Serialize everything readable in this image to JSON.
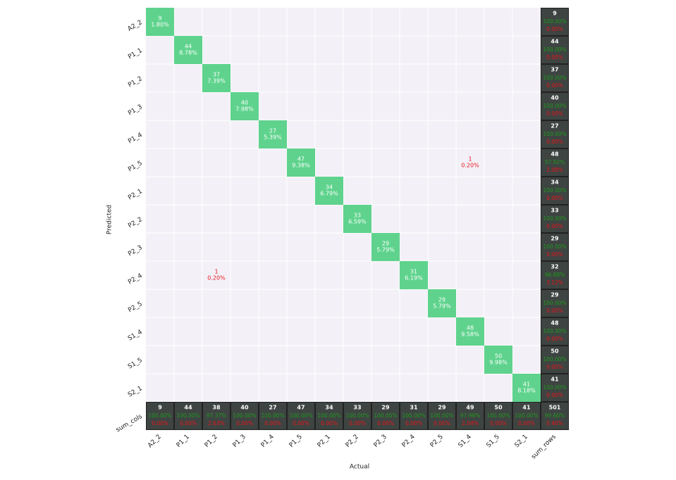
{
  "chart_data": {
    "type": "confusion_matrix",
    "x_label": "Actual",
    "y_label": "Predicted",
    "categories": [
      "A2_2",
      "P1_1",
      "P1_2",
      "P1_3",
      "P1_4",
      "P1_5",
      "P2_1",
      "P2_2",
      "P2_3",
      "P2_4",
      "P2_5",
      "S1_4",
      "S1_5",
      "S2_1"
    ],
    "sum_cols_label": "sum_cols",
    "sum_rows_label": "sum_rows",
    "matrix": [
      [
        9,
        null,
        null,
        null,
        null,
        null,
        null,
        null,
        null,
        null,
        null,
        null,
        null,
        null
      ],
      [
        null,
        44,
        null,
        null,
        null,
        null,
        null,
        null,
        null,
        null,
        null,
        null,
        null,
        null
      ],
      [
        null,
        null,
        37,
        null,
        null,
        null,
        null,
        null,
        null,
        null,
        null,
        null,
        null,
        null
      ],
      [
        null,
        null,
        null,
        40,
        null,
        null,
        null,
        null,
        null,
        null,
        null,
        null,
        null,
        null
      ],
      [
        null,
        null,
        null,
        null,
        27,
        null,
        null,
        null,
        null,
        null,
        null,
        null,
        null,
        null
      ],
      [
        null,
        null,
        null,
        null,
        null,
        47,
        null,
        null,
        null,
        null,
        null,
        1,
        null,
        null
      ],
      [
        null,
        null,
        null,
        null,
        null,
        null,
        34,
        null,
        null,
        null,
        null,
        null,
        null,
        null
      ],
      [
        null,
        null,
        null,
        null,
        null,
        null,
        null,
        33,
        null,
        null,
        null,
        null,
        null,
        null
      ],
      [
        null,
        null,
        null,
        null,
        null,
        null,
        null,
        null,
        29,
        null,
        null,
        null,
        null,
        null
      ],
      [
        null,
        null,
        1,
        null,
        null,
        null,
        null,
        null,
        null,
        31,
        null,
        null,
        null,
        null
      ],
      [
        null,
        null,
        null,
        null,
        null,
        null,
        null,
        null,
        null,
        null,
        29,
        null,
        null,
        null
      ],
      [
        null,
        null,
        null,
        null,
        null,
        null,
        null,
        null,
        null,
        null,
        null,
        48,
        null,
        null
      ],
      [
        null,
        null,
        null,
        null,
        null,
        null,
        null,
        null,
        null,
        null,
        null,
        null,
        50,
        null
      ],
      [
        null,
        null,
        null,
        null,
        null,
        null,
        null,
        null,
        null,
        null,
        null,
        null,
        null,
        41
      ]
    ],
    "percent_labels": [
      [
        "1.80%",
        null,
        null,
        null,
        null,
        null,
        null,
        null,
        null,
        null,
        null,
        null,
        null,
        null
      ],
      [
        null,
        "8.78%",
        null,
        null,
        null,
        null,
        null,
        null,
        null,
        null,
        null,
        null,
        null,
        null
      ],
      [
        null,
        null,
        "7.39%",
        null,
        null,
        null,
        null,
        null,
        null,
        null,
        null,
        null,
        null,
        null
      ],
      [
        null,
        null,
        null,
        "7.98%",
        null,
        null,
        null,
        null,
        null,
        null,
        null,
        null,
        null,
        null
      ],
      [
        null,
        null,
        null,
        null,
        "5.39%",
        null,
        null,
        null,
        null,
        null,
        null,
        null,
        null,
        null
      ],
      [
        null,
        null,
        null,
        null,
        null,
        "9.38%",
        null,
        null,
        null,
        null,
        null,
        "0.20%",
        null,
        null
      ],
      [
        null,
        null,
        null,
        null,
        null,
        null,
        "6.79%",
        null,
        null,
        null,
        null,
        null,
        null,
        null
      ],
      [
        null,
        null,
        null,
        null,
        null,
        null,
        null,
        "6.59%",
        null,
        null,
        null,
        null,
        null,
        null
      ],
      [
        null,
        null,
        null,
        null,
        null,
        null,
        null,
        null,
        "5.79%",
        null,
        null,
        null,
        null,
        null
      ],
      [
        null,
        null,
        "0.20%",
        null,
        null,
        null,
        null,
        null,
        null,
        "6.19%",
        null,
        null,
        null,
        null
      ],
      [
        null,
        null,
        null,
        null,
        null,
        null,
        null,
        null,
        null,
        null,
        "5.79%",
        null,
        null,
        null
      ],
      [
        null,
        null,
        null,
        null,
        null,
        null,
        null,
        null,
        null,
        null,
        null,
        "9.58%",
        null,
        null
      ],
      [
        null,
        null,
        null,
        null,
        null,
        null,
        null,
        null,
        null,
        null,
        null,
        null,
        "9.98%",
        null
      ],
      [
        null,
        null,
        null,
        null,
        null,
        null,
        null,
        null,
        null,
        null,
        null,
        null,
        null,
        "8.18%"
      ]
    ],
    "row_sums": {
      "values": [
        9,
        44,
        37,
        40,
        27,
        48,
        34,
        33,
        29,
        32,
        29,
        48,
        50,
        41
      ],
      "correct_labels": [
        "100.00%",
        "100.00%",
        "100.00%",
        "100.00%",
        "100.00%",
        "97.92%",
        "100.00%",
        "100.00%",
        "100.00%",
        "96.88%",
        "100.00%",
        "100.00%",
        "100.00%",
        "100.00%"
      ],
      "error_labels": [
        "0.00%",
        "0.00%",
        "0.00%",
        "0.00%",
        "0.00%",
        "2.08%",
        "0.00%",
        "0.00%",
        "0.00%",
        "3.12%",
        "0.00%",
        "0.00%",
        "0.00%",
        "0.00%"
      ]
    },
    "col_sums": {
      "values": [
        9,
        44,
        38,
        40,
        27,
        47,
        34,
        33,
        29,
        31,
        29,
        49,
        50,
        41
      ],
      "correct_labels": [
        "100.00%",
        "100.00%",
        "97.37%",
        "100.00%",
        "100.00%",
        "100.00%",
        "100.00%",
        "100.00%",
        "100.00%",
        "100.00%",
        "100.00%",
        "97.96%",
        "100.00%",
        "100.00%"
      ],
      "error_labels": [
        "0.00%",
        "0.00%",
        "2.63%",
        "0.00%",
        "0.00%",
        "0.00%",
        "0.00%",
        "0.00%",
        "0.00%",
        "0.00%",
        "0.00%",
        "2.04%",
        "0.00%",
        "0.00%"
      ]
    },
    "total": {
      "value": 501,
      "correct_label": "99.60%",
      "error_label": "0.40%"
    },
    "colors": {
      "background": "#f3f1f7",
      "hit": "#5fd38d",
      "sum": "#3e4441"
    }
  }
}
